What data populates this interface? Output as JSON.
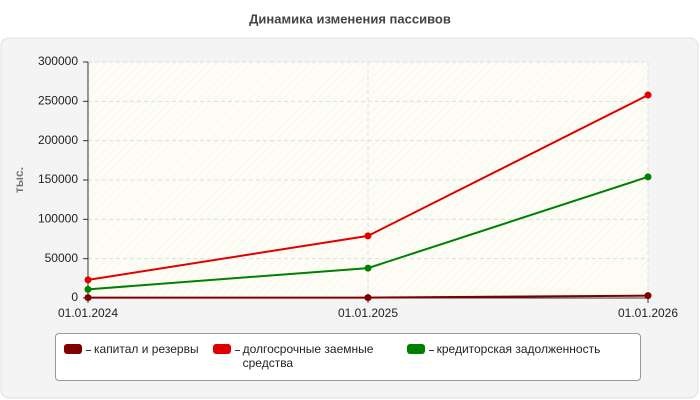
{
  "chart_data": {
    "type": "line",
    "title": "Динамика изменения пассивов",
    "y_label": "тыс.",
    "categories": [
      "01.01.2024",
      "01.01.2025",
      "01.01.2026"
    ],
    "series": [
      {
        "name": "капитал и резервы",
        "color": "#800000",
        "values": [
          500,
          500,
          3000
        ]
      },
      {
        "name": "долгосрочные заемные средства",
        "color": "#e00000",
        "values": [
          23000,
          79000,
          258000
        ]
      },
      {
        "name": "кредиторская задолженность",
        "color": "#008000",
        "values": [
          11000,
          38000,
          154000
        ]
      }
    ],
    "ylim": [
      0,
      300000
    ],
    "yticks": [
      0,
      50000,
      100000,
      150000,
      200000,
      250000,
      300000
    ],
    "grid": true
  }
}
